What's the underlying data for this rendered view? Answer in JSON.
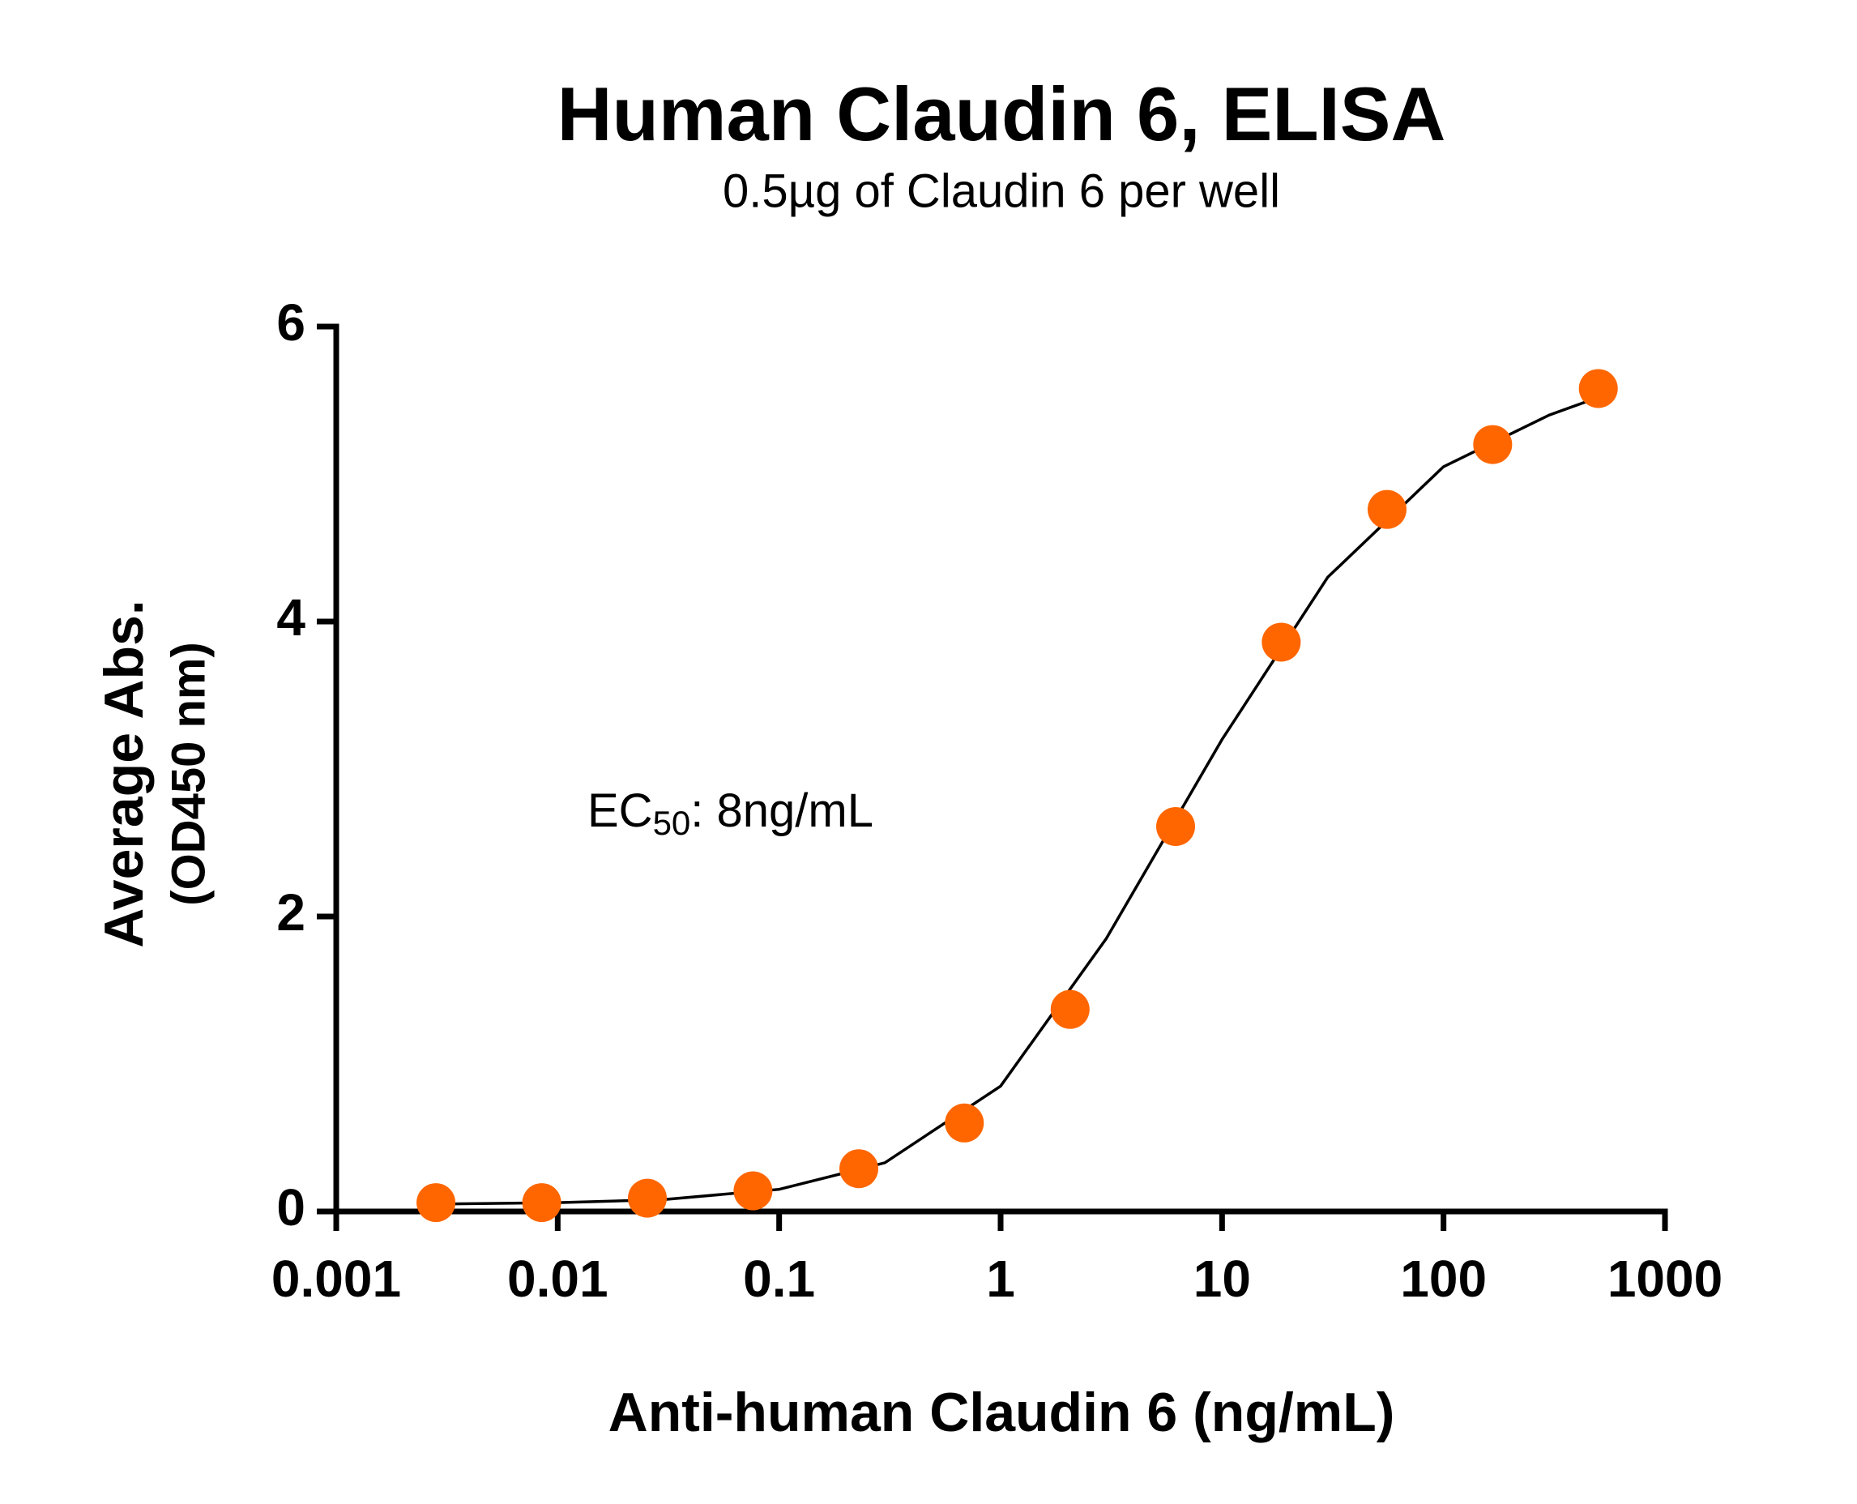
{
  "chart_data": {
    "type": "scatter",
    "title": "Human Claudin 6, ELISA",
    "subtitle": "0.5µg of Claudin 6 per well",
    "x_label": "Anti-human Claudin 6 (ng/mL)",
    "y_label": [
      "Average Abs.",
      "(OD450 nm)"
    ],
    "annotation": {
      "text": "EC",
      "sub": "50",
      "rest": ": 8ng/mL"
    },
    "xscale": "log",
    "xlim": [
      0.001,
      1000
    ],
    "xticks": [
      0.001,
      0.01,
      0.1,
      1,
      10,
      100,
      1000
    ],
    "ylim": [
      0,
      6
    ],
    "yticks": [
      0,
      2,
      4,
      6
    ],
    "series": [
      {
        "mode": "markers",
        "color": "#ff6600",
        "x": [
          0.00282,
          0.00847,
          0.0254,
          0.0762,
          0.229,
          0.686,
          2.06,
          6.17,
          18.5,
          55.6,
          166.7,
          500
        ],
        "values": [
          0.06,
          0.06,
          0.09,
          0.14,
          0.29,
          0.6,
          1.37,
          2.61,
          3.86,
          4.76,
          5.2,
          5.58
        ]
      },
      {
        "mode": "line",
        "color": "#000000",
        "x": [
          0.00282,
          0.01,
          0.03,
          0.1,
          0.3,
          1,
          3,
          10,
          30,
          100,
          300,
          500
        ],
        "values": [
          0.05,
          0.06,
          0.08,
          0.15,
          0.33,
          0.85,
          1.85,
          3.2,
          4.3,
          5.05,
          5.4,
          5.52
        ]
      }
    ]
  }
}
